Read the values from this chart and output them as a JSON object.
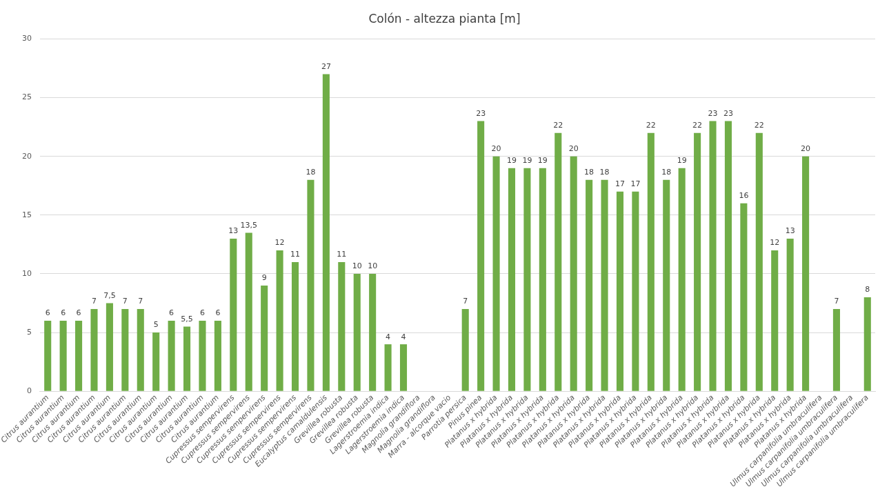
{
  "chart_data": {
    "type": "bar",
    "title": "Colón - altezza pianta [m]",
    "categories": [
      "Citrus aurantium",
      "Citrus aurantium",
      "Citrus aurantium",
      "Citrus aurantium",
      "Citrus aurantium",
      "Citrus aurantium",
      "Citrus aurantium",
      "Citrus aurantium",
      "Citrus aurantium",
      "Citrus aurantium",
      "Citrus aurantium",
      "Citrus aurantium",
      "Cupressus sempervirens",
      "Cupressus sempervirens",
      "Cupressus sempervirens",
      "Cupressus sempervirens",
      "Cupressus sempervirens",
      "Cupressus sempervirens",
      "Eucalyptus camaldulensis",
      "Grevillea robusta",
      "Grevillea robusta",
      "Grevillea robusta",
      "Lagerstroemia indica",
      "Lagerstroemia indica",
      "Magnolia grandiflora",
      "Magnolia grandiflora",
      "Marra - alcorque vacio",
      "Parrotia persica",
      "Pinus pinea",
      "Platanus x hybrida",
      "Platanus x hybrida",
      "Platanus x hybrida",
      "Platanus x hybrida",
      "Platanus x hybrida",
      "Platanus x hybrida",
      "Platanus x hybrida",
      "Platanus x hybrida",
      "Platanus x hybrida",
      "Platanus x hybrida",
      "Platanus x hybrida",
      "Platanus x hybrida",
      "Platanus x hybrida",
      "Platanus x hybrida",
      "Platanus x hybrida",
      "Platanus x hybrida",
      "Platanus x hybrida",
      "Platanus x hybrida",
      "Platanus x hybrida",
      "Platanus x hybrida",
      "Platanus x hybrida",
      "Ulmus carpanifolia umbraculifera",
      "Ulmus carpanifolia umbraculifera",
      "Ulmus carpanifolia umbraculifera",
      "Ulmus carpanifolia umbraculifera"
    ],
    "values": [
      6,
      6,
      6,
      7,
      7.5,
      7,
      7,
      5,
      6,
      5.5,
      6,
      6,
      13,
      13.5,
      9,
      12,
      11,
      18,
      27,
      11,
      10,
      10,
      4,
      4,
      null,
      null,
      null,
      7,
      23,
      20,
      19,
      19,
      19,
      22,
      20,
      18,
      18,
      17,
      17,
      22,
      18,
      19,
      22,
      23,
      23,
      16,
      22,
      12,
      13,
      20,
      null,
      7,
      null,
      8
    ],
    "value_labels": [
      "6",
      "6",
      "6",
      "7",
      "7,5",
      "7",
      "7",
      "5",
      "6",
      "5,5",
      "6",
      "6",
      "13",
      "13,5",
      "9",
      "12",
      "11",
      "18",
      "27",
      "11",
      "10",
      "10",
      "4",
      "4",
      null,
      null,
      null,
      "7",
      "23",
      "20",
      "19",
      "19",
      "19",
      "22",
      "20",
      "18",
      "18",
      "17",
      "17",
      "22",
      "18",
      "19",
      "22",
      "23",
      "23",
      "16",
      "22",
      "12",
      "13",
      "20",
      null,
      "7",
      null,
      "8"
    ],
    "color": "#70ad47",
    "ylim": [
      0,
      30
    ],
    "yticks": [
      0,
      5,
      10,
      15,
      20,
      25,
      30
    ],
    "grid": "y"
  }
}
